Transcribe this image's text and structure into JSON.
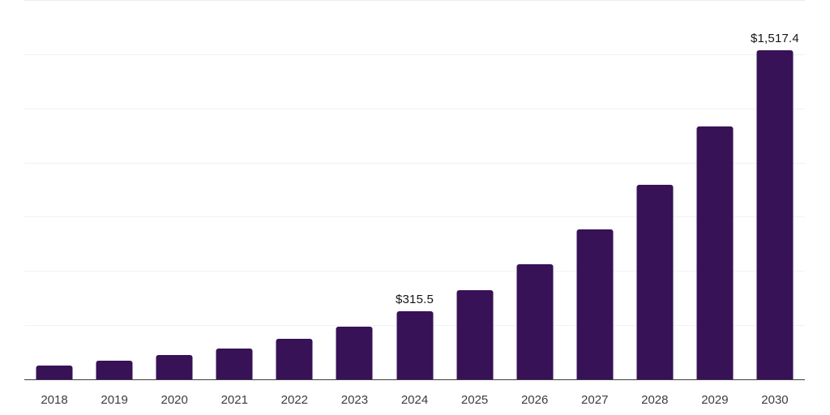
{
  "chart_data": {
    "type": "bar",
    "title": "",
    "xlabel": "",
    "ylabel": "",
    "categories": [
      "2018",
      "2019",
      "2020",
      "2021",
      "2022",
      "2023",
      "2024",
      "2025",
      "2026",
      "2027",
      "2028",
      "2029",
      "2030"
    ],
    "values": [
      65.6,
      85.2,
      110.7,
      143.8,
      186.9,
      242.8,
      315.5,
      409.9,
      532.5,
      691.8,
      898.8,
      1167.8,
      1517.4
    ],
    "value_labels": {
      "2024": "$315.5",
      "2030": "$1,517.4"
    },
    "ylim": [
      0,
      1750
    ],
    "gridline_step": 250,
    "grid": "horizontal",
    "legend": "none",
    "y_tick_labels_visible": false,
    "colors": {
      "bar": "#371257",
      "grid": "#f0f1f3",
      "top_grid": "#e9ebee",
      "axis": "#3f3f3f",
      "value_label_text": "#141414",
      "tick_label_text": "#3c3c3c",
      "background": "#ffffff"
    }
  }
}
